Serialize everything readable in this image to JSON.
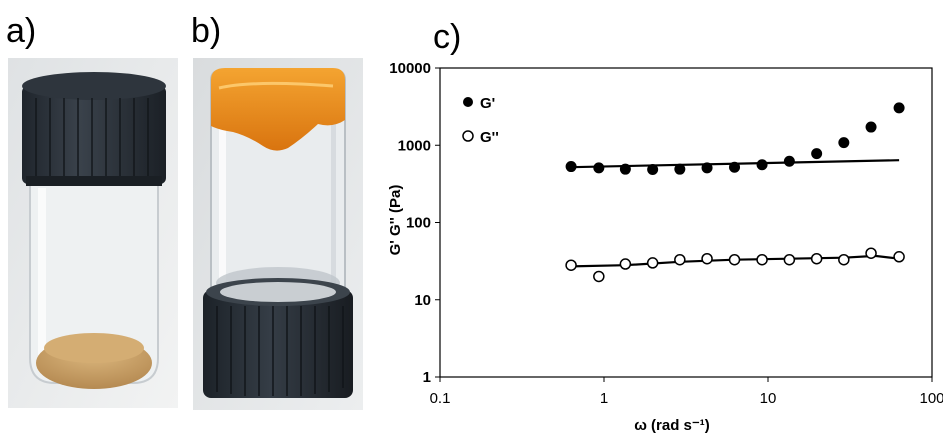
{
  "panels": {
    "a_label": "a)",
    "b_label": "b)",
    "c_label": "c)"
  },
  "photo_a": {
    "description_icon": "vial-with-powder"
  },
  "photo_b": {
    "description_icon": "inverted-vial-with-gel"
  },
  "colors": {
    "cap": "#2b3139",
    "glass": "#e8ecef",
    "powder": "#c9a26b",
    "gel": "#e68a1a",
    "axis": "#000000"
  },
  "chart_data": {
    "type": "scatter",
    "xscale": "log",
    "yscale": "log",
    "xlim": [
      0.1,
      100
    ],
    "ylim": [
      1,
      10000
    ],
    "xticks": [
      "0.1",
      "1",
      "10",
      "100"
    ],
    "yticks": [
      "1",
      "10",
      "100",
      "1000",
      "10000"
    ],
    "xlabel": "ω (rad s⁻¹)",
    "ylabel": "G' G'' (Pa)",
    "legend_position": "top-left",
    "series": [
      {
        "name": "G'",
        "marker": "filled-circle",
        "x": [
          0.63,
          0.93,
          1.35,
          1.98,
          2.9,
          4.25,
          6.25,
          9.2,
          13.5,
          19.8,
          29,
          42.5,
          63
        ],
        "y": [
          530,
          510,
          490,
          485,
          490,
          510,
          520,
          560,
          620,
          780,
          1080,
          1720,
          3050
        ],
        "fit_x": [
          0.63,
          63
        ],
        "fit_y": [
          520,
          640
        ]
      },
      {
        "name": "G''",
        "marker": "open-circle",
        "x": [
          0.63,
          0.93,
          1.35,
          1.98,
          2.9,
          4.25,
          6.25,
          9.2,
          13.5,
          19.8,
          29,
          42.5,
          63
        ],
        "y": [
          28,
          20,
          29,
          30,
          33,
          34,
          33,
          33,
          33,
          34,
          33,
          40,
          36
        ],
        "fit_x": [
          0.63,
          1.35,
          2.9,
          6.25,
          13.5,
          29,
          45,
          63
        ],
        "fit_y": [
          27,
          28,
          31,
          33,
          34,
          35,
          37,
          34
        ]
      }
    ]
  }
}
